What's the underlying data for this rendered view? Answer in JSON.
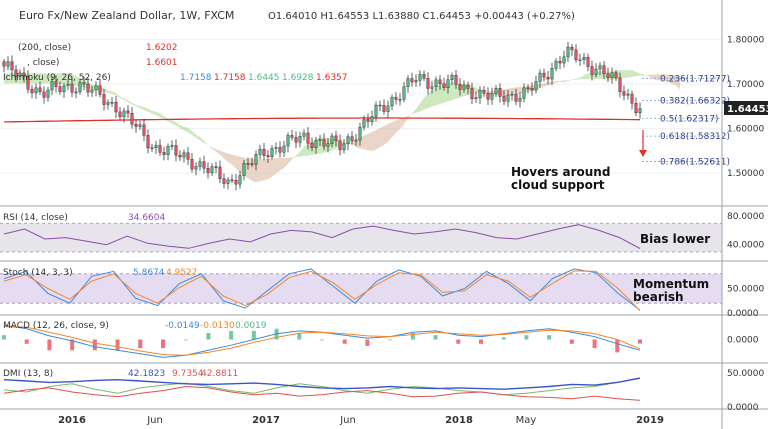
{
  "header": {
    "title": "Euro Fx/New Zealand Dollar, 1W, FXCM",
    "ohlc": "O1.64010  H1.64553  L1.63880  C1.64453  +0.00443 (+0.27%)"
  },
  "legend": {
    "ma200": "(200, close)",
    "ma200_val": "1.6202",
    "ma_close": ", close)",
    "ma_close_val": "1.6601",
    "ichimoku": "Ichimoku (9, 26, 52, 26)",
    "ichimoku_vals": [
      "1.7158",
      "1.7158",
      "1.6445",
      "1.6928",
      "1.6357"
    ],
    "rsi": "RSI (14, close)",
    "rsi_val": "34.6604",
    "stoch": "Stoch (14, 3, 3)",
    "stoch_vals": [
      "5.8674",
      "4.9527"
    ],
    "macd": "MACD (12, 26, close, 9)",
    "macd_vals": [
      "-0.0149",
      "-0.0130",
      "0.0019"
    ],
    "dmi": "DMI (13, 8)",
    "dmi_vals": [
      "42.1823",
      "9.7354",
      "42.8811"
    ]
  },
  "price_badge": "1.64453",
  "fib": [
    {
      "label": "0.236(1.71277)",
      "value": 1.71277
    },
    {
      "label": "0.382(1.66322)",
      "value": 1.66322
    },
    {
      "label": "0.5(1.62317)",
      "value": 1.62317
    },
    {
      "label": "0.618(1.58312)",
      "value": 1.58312
    },
    {
      "label": "0.786(1.52611)",
      "value": 1.52611
    }
  ],
  "annotations": {
    "cloud": [
      "Hovers around",
      "cloud support"
    ],
    "rsi": "Bias lower",
    "stoch": [
      "Momentum",
      "bearish"
    ]
  },
  "x_axis_labels": [
    "2016",
    "Jun",
    "2017",
    "Jun",
    "2018",
    "May",
    "2019"
  ],
  "colors": {
    "up": "#53b987",
    "down": "#eb4d5c",
    "ma200": "#e0302a",
    "cloud_bull": "#a5d68b",
    "cloud_bear": "#d9b59a",
    "rsi": "#8e4bb2",
    "stoch_k": "#3c8bd9",
    "stoch_d": "#f4872d",
    "macd": "#3c8bd9",
    "signal": "#f4872d",
    "hist_pos": "#53b987",
    "hist_neg": "#eb4d5c",
    "dmi_plus": "#3a55c9",
    "dmi_minus": "#e05050",
    "adx": "#7fb66a",
    "badge": "#222222"
  },
  "chart_data": [
    {
      "type": "candlestick",
      "title": "Euro Fx/New Zealand Dollar, 1W, FXCM",
      "y_ticks": [
        "1.80000",
        "1.70000",
        "1.60000",
        "1.50000"
      ],
      "ylim": [
        1.44,
        1.83
      ],
      "key_points": [
        {
          "x": "2015-11",
          "close": 1.74
        },
        {
          "x": "2015-12",
          "close": 1.68
        },
        {
          "x": "2016-01",
          "close": 1.7
        },
        {
          "x": "2016-04",
          "close": 1.65
        },
        {
          "x": "2016-06",
          "close": 1.56
        },
        {
          "x": "2016-09",
          "close": 1.53
        },
        {
          "x": "2016-12",
          "close": 1.48
        },
        {
          "x": "2017-03",
          "close": 1.55
        },
        {
          "x": "2017-05",
          "close": 1.58
        },
        {
          "x": "2017-07",
          "close": 1.56
        },
        {
          "x": "2017-09",
          "close": 1.64
        },
        {
          "x": "2017-11",
          "close": 1.71
        },
        {
          "x": "2018-01",
          "close": 1.7
        },
        {
          "x": "2018-03",
          "close": 1.67
        },
        {
          "x": "2018-05",
          "close": 1.68
        },
        {
          "x": "2018-08",
          "close": 1.77
        },
        {
          "x": "2018-10",
          "close": 1.73
        },
        {
          "x": "2018-11",
          "close": 1.645
        }
      ],
      "ma200_level": 1.6202
    },
    {
      "type": "line",
      "name": "RSI (14, close)",
      "y_ticks": [
        "80.0000",
        "40.0000"
      ],
      "ylim": [
        20,
        90
      ],
      "band": [
        30,
        70
      ],
      "values": [
        55,
        62,
        48,
        50,
        45,
        40,
        52,
        42,
        38,
        35,
        42,
        48,
        44,
        55,
        60,
        58,
        50,
        62,
        66,
        60,
        55,
        58,
        62,
        57,
        50,
        48,
        55,
        62,
        68,
        60,
        50,
        34.66
      ]
    },
    {
      "type": "line",
      "name": "Stoch (14, 3, 3)",
      "y_ticks": [
        "50.0000",
        "0.0000"
      ],
      "ylim": [
        0,
        100
      ],
      "band": [
        20,
        80
      ],
      "series": [
        {
          "name": "%K",
          "values": [
            70,
            85,
            40,
            20,
            75,
            85,
            30,
            15,
            60,
            80,
            25,
            10,
            45,
            80,
            90,
            55,
            20,
            65,
            88,
            75,
            35,
            50,
            85,
            60,
            25,
            70,
            90,
            82,
            40,
            5.87
          ]
        },
        {
          "name": "%D",
          "values": [
            65,
            78,
            50,
            28,
            65,
            80,
            40,
            20,
            52,
            75,
            35,
            15,
            38,
            72,
            85,
            62,
            28,
            58,
            82,
            78,
            42,
            45,
            78,
            65,
            32,
            60,
            86,
            85,
            50,
            4.95
          ]
        }
      ]
    },
    {
      "type": "line",
      "name": "MACD (12, 26, close, 9)",
      "y_ticks": [
        "0.0000"
      ],
      "ylim": [
        -0.03,
        0.03
      ],
      "series": [
        {
          "name": "MACD",
          "values": [
            0.02,
            0.015,
            0.005,
            -0.002,
            -0.01,
            -0.015,
            -0.02,
            -0.025,
            -0.022,
            -0.015,
            -0.008,
            0.0,
            0.008,
            0.012,
            0.01,
            0.006,
            0.002,
            0.004,
            0.01,
            0.012,
            0.006,
            0.004,
            0.008,
            0.012,
            0.015,
            0.01,
            0.004,
            -0.006,
            -0.0149
          ]
        },
        {
          "name": "Signal",
          "values": [
            0.018,
            0.017,
            0.01,
            0.003,
            -0.005,
            -0.01,
            -0.016,
            -0.021,
            -0.022,
            -0.018,
            -0.012,
            -0.004,
            0.003,
            0.009,
            0.01,
            0.008,
            0.005,
            0.004,
            0.007,
            0.01,
            0.008,
            0.006,
            0.007,
            0.01,
            0.013,
            0.012,
            0.008,
            0.0,
            -0.013
          ]
        }
      ]
    },
    {
      "type": "line",
      "name": "DMI (13, 8)",
      "y_ticks": [
        "50.0000",
        "0.0000"
      ],
      "ylim": [
        0,
        60
      ],
      "series": [
        {
          "name": "+DI",
          "values": [
            40,
            38,
            36,
            37,
            39,
            40,
            38,
            36,
            34,
            33,
            34,
            35,
            33,
            30,
            28,
            27,
            28,
            30,
            28,
            27,
            28,
            27,
            26,
            28,
            30,
            33,
            32,
            36,
            42.18
          ]
        },
        {
          "name": "-DI",
          "values": [
            20,
            25,
            28,
            22,
            18,
            15,
            20,
            24,
            30,
            28,
            22,
            18,
            20,
            16,
            18,
            22,
            24,
            20,
            15,
            16,
            20,
            22,
            18,
            15,
            14,
            12,
            16,
            12,
            9.74
          ]
        },
        {
          "name": "ADX",
          "values": [
            25,
            22,
            30,
            34,
            26,
            20,
            28,
            32,
            35,
            30,
            24,
            20,
            28,
            34,
            30,
            24,
            20,
            26,
            30,
            28,
            24,
            22,
            18,
            20,
            24,
            28,
            30,
            36,
            42.88
          ]
        }
      ]
    }
  ]
}
